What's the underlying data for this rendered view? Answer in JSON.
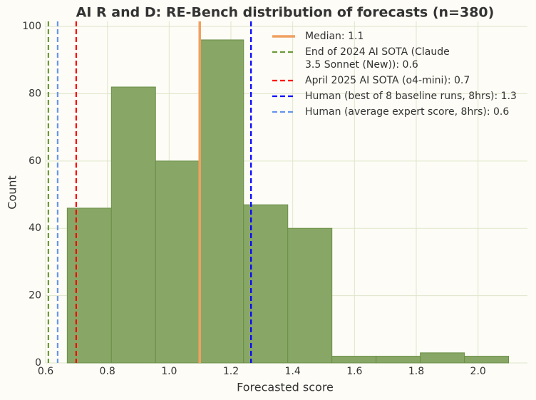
{
  "chart_data": {
    "type": "histogram",
    "title": "AI R and D: RE-Bench distribution of forecasts (n=380)",
    "x_label": "Forecasted score",
    "y_label": "Count",
    "bins": [
      0.67,
      0.813,
      0.956,
      1.099,
      1.241,
      1.384,
      1.527,
      1.67,
      1.813,
      1.956,
      2.099
    ],
    "values": [
      46,
      82,
      60,
      96,
      47,
      40,
      2,
      2,
      3,
      2
    ],
    "color": "#88a767",
    "edge_color": "#6a8f45",
    "xlim": [
      0.6,
      2.16
    ],
    "ylim": [
      0,
      101.5
    ],
    "xticks": [
      0.6,
      0.8,
      {
        "value": 1,
        "label": "1.0"
      },
      1.2,
      1.4,
      1.6,
      1.8,
      {
        "value": 2,
        "label": "2.0"
      }
    ],
    "yticks": [
      0,
      20,
      40,
      60,
      80,
      100
    ],
    "grid": true,
    "vlines": [
      {
        "name": "Median: 1.1",
        "value": 1.099,
        "color": "#f0a060",
        "style": "solid"
      },
      {
        "name": "End of 2024 AI SOTA (Claude\n3.5 Sonnet (New)): 0.6",
        "value": 0.609,
        "color": "#6b9a3a",
        "style": "dashed"
      },
      {
        "name": "April 2025 AI SOTA (o4-mini): 0.7",
        "value": 0.699,
        "color": "#ff0000",
        "style": "dashed"
      },
      {
        "name": "Human (best of 8 baseline runs, 8hrs): 1.3",
        "value": 1.265,
        "color": "#0000ff",
        "style": "dashed"
      },
      {
        "name": "Human (average expert score, 8hrs): 0.6",
        "value": 0.639,
        "color": "#6495ed",
        "style": "dashed"
      }
    ],
    "legend": "upper right"
  }
}
